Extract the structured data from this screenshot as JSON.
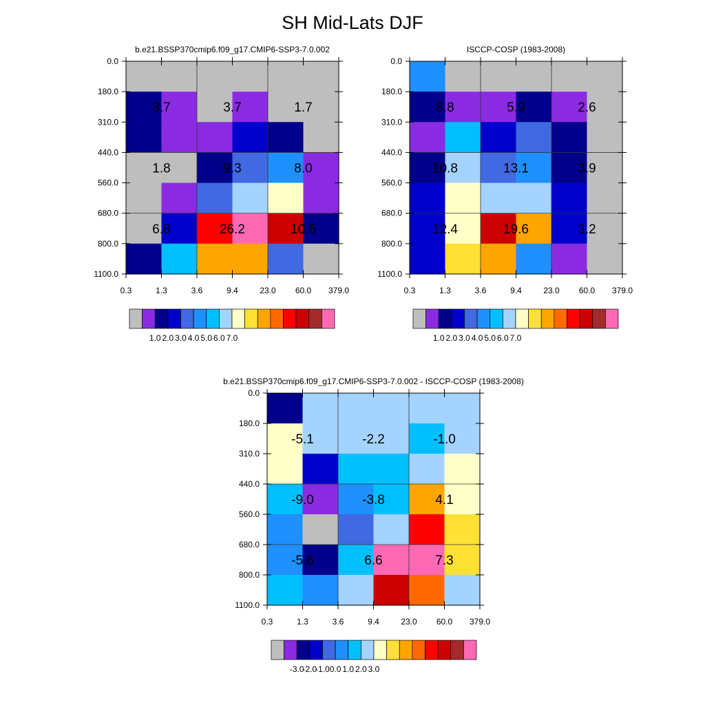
{
  "title": "SH Mid-Lats DJF",
  "palettes": {
    "abs": [
      "#bebebe",
      "#8a2be2",
      "#00008b",
      "#0000cd",
      "#4169e1",
      "#1e90ff",
      "#00bfff",
      "#a4d3ff",
      "#ffffc8",
      "#ffe135",
      "#ffa500",
      "#ff6a00",
      "#ff0000",
      "#cd0000",
      "#a52a2a",
      "#ff69b4"
    ],
    "diff": [
      "#bebebe",
      "#8a2be2",
      "#00008b",
      "#0000cd",
      "#4169e1",
      "#1e90ff",
      "#00bfff",
      "#a4d3ff",
      "#ffffc8",
      "#ffe135",
      "#ffa500",
      "#ff6a00",
      "#ff0000",
      "#cd0000",
      "#a52a2a",
      "#ff69b4"
    ]
  },
  "chart_data": [
    {
      "type": "heatmap",
      "title": "b.e21.BSSP370cmip6.f09_g17.CMIP6-SSP3-7.0.002",
      "x_ticks": [
        "0.3",
        "1.3",
        "3.6",
        "9.4",
        "23.0",
        "60.0",
        "379.0"
      ],
      "y_ticks": [
        "0.0",
        "180.0",
        "310.0",
        "440.0",
        "560.0",
        "680.0",
        "800.0",
        "1100.0"
      ],
      "cells": [
        [
          0,
          0,
          0,
          0,
          0,
          0
        ],
        [
          2,
          1,
          0,
          1,
          0,
          0
        ],
        [
          2,
          1,
          1,
          3,
          2,
          0
        ],
        [
          0,
          0,
          2,
          4,
          5,
          1
        ],
        [
          0,
          1,
          4,
          7,
          8,
          1
        ],
        [
          0,
          3,
          12,
          15,
          13,
          2
        ],
        [
          2,
          6,
          10,
          10,
          4,
          0
        ]
      ],
      "cell_labels": [
        {
          "col": 1,
          "row": 2,
          "text": "3.7"
        },
        {
          "col": 3,
          "row": 2,
          "text": "3.7"
        },
        {
          "col": 5,
          "row": 2,
          "text": "1.7"
        },
        {
          "col": 1,
          "row": 4,
          "text": "1.8"
        },
        {
          "col": 3,
          "row": 4,
          "text": "9.3"
        },
        {
          "col": 5,
          "row": 4,
          "text": "8.0"
        },
        {
          "col": 1,
          "row": 6,
          "text": "6.8"
        },
        {
          "col": 3,
          "row": 6,
          "text": "26.2"
        },
        {
          "col": 5,
          "row": 6,
          "text": "10.5"
        }
      ],
      "colorbar_labels": [
        "1.0",
        "2.0",
        "3.0",
        "4.0",
        "5.0",
        "6.0",
        "7.0"
      ]
    },
    {
      "type": "heatmap",
      "title": "ISCCP-COSP (1983-2008)",
      "x_ticks": [
        "0.3",
        "1.3",
        "3.6",
        "9.4",
        "23.0",
        "60.0",
        "379.0"
      ],
      "y_ticks": [
        "0.0",
        "180.0",
        "310.0",
        "440.0",
        "560.0",
        "680.0",
        "800.0",
        "1100.0"
      ],
      "cells": [
        [
          5,
          0,
          0,
          0,
          0,
          0
        ],
        [
          2,
          1,
          1,
          2,
          1,
          0
        ],
        [
          1,
          6,
          3,
          4,
          2,
          0
        ],
        [
          2,
          7,
          4,
          5,
          2,
          0
        ],
        [
          3,
          8,
          7,
          7,
          3,
          0
        ],
        [
          3,
          8,
          13,
          10,
          3,
          0
        ],
        [
          3,
          9,
          10,
          5,
          1,
          0
        ]
      ],
      "cell_labels": [
        {
          "col": 1,
          "row": 2,
          "text": "8.8"
        },
        {
          "col": 3,
          "row": 2,
          "text": "5.9"
        },
        {
          "col": 5,
          "row": 2,
          "text": "2.6"
        },
        {
          "col": 1,
          "row": 4,
          "text": "10.8"
        },
        {
          "col": 3,
          "row": 4,
          "text": "13.1"
        },
        {
          "col": 5,
          "row": 4,
          "text": "3.9"
        },
        {
          "col": 1,
          "row": 6,
          "text": "12.4"
        },
        {
          "col": 3,
          "row": 6,
          "text": "19.6"
        },
        {
          "col": 5,
          "row": 6,
          "text": "3.2"
        }
      ],
      "colorbar_labels": [
        "1.0",
        "2.0",
        "3.0",
        "4.0",
        "5.0",
        "6.0",
        "7.0"
      ]
    },
    {
      "type": "heatmap",
      "title": "b.e21.BSSP370cmip6.f09_g17.CMIP6-SSP3-7.0.002 - ISCCP-COSP (1983-2008)",
      "x_ticks": [
        "0.3",
        "1.3",
        "3.6",
        "9.4",
        "23.0",
        "60.0",
        "379.0"
      ],
      "y_ticks": [
        "0.0",
        "180.0",
        "310.0",
        "440.0",
        "560.0",
        "680.0",
        "800.0",
        "1100.0"
      ],
      "cells": [
        [
          2,
          7,
          7,
          7,
          7,
          7
        ],
        [
          8,
          7,
          7,
          7,
          6,
          7
        ],
        [
          8,
          3,
          6,
          6,
          7,
          8
        ],
        [
          6,
          1,
          5,
          6,
          10,
          8
        ],
        [
          5,
          0,
          4,
          7,
          12,
          9
        ],
        [
          5,
          2,
          6,
          15,
          15,
          9
        ],
        [
          6,
          5,
          7,
          13,
          11,
          7
        ]
      ],
      "cell_labels": [
        {
          "col": 1,
          "row": 2,
          "text": "-5.1"
        },
        {
          "col": 3,
          "row": 2,
          "text": "-2.2"
        },
        {
          "col": 5,
          "row": 2,
          "text": "-1.0"
        },
        {
          "col": 1,
          "row": 4,
          "text": "-9.0"
        },
        {
          "col": 3,
          "row": 4,
          "text": "-3.8"
        },
        {
          "col": 5,
          "row": 4,
          "text": "4.1"
        },
        {
          "col": 1,
          "row": 6,
          "text": "-5.6"
        },
        {
          "col": 3,
          "row": 6,
          "text": "6.6"
        },
        {
          "col": 5,
          "row": 6,
          "text": "7.3"
        }
      ],
      "colorbar_labels": [
        "-3.0",
        "-2.0",
        "-1.0",
        "0.0",
        "1.0",
        "2.0",
        "3.0"
      ]
    }
  ]
}
